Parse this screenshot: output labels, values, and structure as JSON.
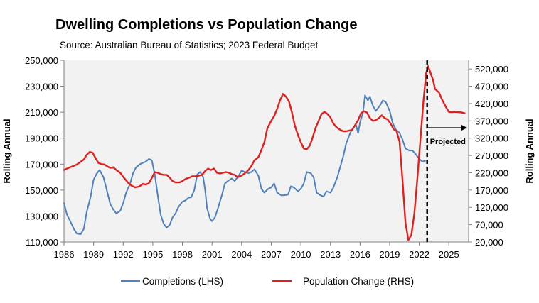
{
  "chart_data": {
    "type": "line",
    "title": "Dwelling Completions vs Population Change",
    "subtitle": "Source: Australian Bureau of Statistics; 2023 Federal Budget",
    "xlabel": "",
    "ylabel_left": "Rolling Annual",
    "ylabel_right": "Rolling Annual",
    "xlim": [
      1986,
      2027
    ],
    "ylim_left": [
      110000,
      250000
    ],
    "ylim_right": [
      20000,
      545000
    ],
    "x_ticks": [
      1986,
      1989,
      1992,
      1995,
      1998,
      2001,
      2004,
      2007,
      2010,
      2013,
      2016,
      2019,
      2022,
      2025
    ],
    "x_tick_labels": [
      "1986",
      "1989",
      "1992",
      "1995",
      "1998",
      "2001",
      "2004",
      "2007",
      "2010",
      "2013",
      "2016",
      "2019",
      "2022",
      "2025"
    ],
    "y_left_ticks": [
      110000,
      130000,
      150000,
      170000,
      190000,
      210000,
      230000,
      250000
    ],
    "y_left_tick_labels": [
      "110,000",
      "130,000",
      "150,000",
      "170,000",
      "190,000",
      "210,000",
      "230,000",
      "250,000"
    ],
    "y_right_ticks": [
      20000,
      70000,
      120000,
      170000,
      220000,
      270000,
      320000,
      370000,
      420000,
      470000,
      520000
    ],
    "y_right_tick_labels": [
      "20,000",
      "70,000",
      "120,000",
      "170,000",
      "220,000",
      "270,000",
      "320,000",
      "370,000",
      "420,000",
      "470,000",
      "520,000"
    ],
    "grid": false,
    "legend_position": "bottom",
    "annotation": {
      "text": "Projected",
      "x": 2022.8
    },
    "series": [
      {
        "name": "Completions (LHS)",
        "axis": "left",
        "color": "#4f81bd",
        "points": [
          [
            1986.0,
            140000
          ],
          [
            1986.3,
            131000
          ],
          [
            1986.7,
            125000
          ],
          [
            1987.0,
            120000
          ],
          [
            1987.3,
            116500
          ],
          [
            1987.7,
            116000
          ],
          [
            1988.0,
            120000
          ],
          [
            1988.3,
            133000
          ],
          [
            1988.7,
            145000
          ],
          [
            1989.0,
            158000
          ],
          [
            1989.3,
            162500
          ],
          [
            1989.6,
            165500
          ],
          [
            1990.0,
            160000
          ],
          [
            1990.3,
            151000
          ],
          [
            1990.7,
            139000
          ],
          [
            1991.0,
            135000
          ],
          [
            1991.3,
            132000
          ],
          [
            1991.7,
            134000
          ],
          [
            1992.0,
            140000
          ],
          [
            1992.3,
            148000
          ],
          [
            1992.7,
            155000
          ],
          [
            1993.0,
            163000
          ],
          [
            1993.3,
            167500
          ],
          [
            1993.7,
            170000
          ],
          [
            1994.0,
            171000
          ],
          [
            1994.3,
            172000
          ],
          [
            1994.6,
            174000
          ],
          [
            1994.9,
            173000
          ],
          [
            1995.2,
            162000
          ],
          [
            1995.5,
            146000
          ],
          [
            1995.8,
            131000
          ],
          [
            1996.1,
            124000
          ],
          [
            1996.4,
            121000
          ],
          [
            1996.7,
            123000
          ],
          [
            1997.0,
            129000
          ],
          [
            1997.3,
            132000
          ],
          [
            1997.6,
            137000
          ],
          [
            1998.0,
            141000
          ],
          [
            1998.3,
            142000
          ],
          [
            1998.6,
            144000
          ],
          [
            1998.9,
            144500
          ],
          [
            1999.2,
            150000
          ],
          [
            1999.5,
            162000
          ],
          [
            1999.8,
            164000
          ],
          [
            2000.1,
            160000
          ],
          [
            2000.3,
            150000
          ],
          [
            2000.5,
            136000
          ],
          [
            2000.8,
            128000
          ],
          [
            2001.0,
            126000
          ],
          [
            2001.3,
            129000
          ],
          [
            2001.6,
            136000
          ],
          [
            2002.0,
            146000
          ],
          [
            2002.3,
            155000
          ],
          [
            2002.6,
            157000
          ],
          [
            2003.0,
            159000
          ],
          [
            2003.3,
            157000
          ],
          [
            2003.7,
            161000
          ],
          [
            2004.0,
            165000
          ],
          [
            2004.3,
            164000
          ],
          [
            2004.7,
            163000
          ],
          [
            2005.0,
            164000
          ],
          [
            2005.3,
            166000
          ],
          [
            2005.7,
            161000
          ],
          [
            2006.0,
            151000
          ],
          [
            2006.3,
            148000
          ],
          [
            2006.7,
            151000
          ],
          [
            2007.0,
            152000
          ],
          [
            2007.3,
            155000
          ],
          [
            2007.6,
            148000
          ],
          [
            2008.0,
            146000
          ],
          [
            2008.3,
            146000
          ],
          [
            2008.7,
            146500
          ],
          [
            2009.0,
            153000
          ],
          [
            2009.3,
            152000
          ],
          [
            2009.7,
            149000
          ],
          [
            2010.0,
            151000
          ],
          [
            2010.3,
            155000
          ],
          [
            2010.6,
            164000
          ],
          [
            2011.0,
            163000
          ],
          [
            2011.3,
            160000
          ],
          [
            2011.6,
            148000
          ],
          [
            2012.0,
            146000
          ],
          [
            2012.3,
            145000
          ],
          [
            2012.6,
            149000
          ],
          [
            2013.0,
            148000
          ],
          [
            2013.3,
            152000
          ],
          [
            2013.7,
            160000
          ],
          [
            2014.0,
            168000
          ],
          [
            2014.3,
            176000
          ],
          [
            2014.6,
            186000
          ],
          [
            2015.0,
            194000
          ],
          [
            2015.3,
            198000
          ],
          [
            2015.6,
            200000
          ],
          [
            2015.8,
            194000
          ],
          [
            2016.0,
            202000
          ],
          [
            2016.3,
            210000
          ],
          [
            2016.5,
            223000
          ],
          [
            2016.8,
            219000
          ],
          [
            2017.0,
            222000
          ],
          [
            2017.3,
            215000
          ],
          [
            2017.6,
            211000
          ],
          [
            2018.0,
            215000
          ],
          [
            2018.3,
            219000
          ],
          [
            2018.6,
            218000
          ],
          [
            2019.0,
            211000
          ],
          [
            2019.3,
            202000
          ],
          [
            2019.6,
            197000
          ],
          [
            2020.0,
            194000
          ],
          [
            2020.3,
            189000
          ],
          [
            2020.6,
            182000
          ],
          [
            2021.0,
            180500
          ],
          [
            2021.3,
            180500
          ],
          [
            2021.6,
            178000
          ],
          [
            2022.0,
            174000
          ],
          [
            2022.3,
            172000
          ],
          [
            2022.6,
            172500
          ]
        ]
      },
      {
        "name": "Population Change (RHS)",
        "axis": "right",
        "color": "#e02020",
        "points": [
          [
            1986.0,
            228000
          ],
          [
            1986.3,
            232000
          ],
          [
            1986.7,
            237000
          ],
          [
            1987.0,
            240000
          ],
          [
            1987.3,
            244000
          ],
          [
            1987.7,
            252000
          ],
          [
            1988.0,
            258000
          ],
          [
            1988.3,
            272000
          ],
          [
            1988.6,
            280000
          ],
          [
            1988.9,
            278000
          ],
          [
            1989.2,
            262000
          ],
          [
            1989.5,
            248000
          ],
          [
            1989.8,
            245000
          ],
          [
            1990.1,
            244000
          ],
          [
            1990.4,
            238000
          ],
          [
            1990.7,
            234000
          ],
          [
            1991.0,
            236000
          ],
          [
            1991.3,
            228000
          ],
          [
            1991.7,
            220000
          ],
          [
            1992.0,
            208000
          ],
          [
            1992.3,
            198000
          ],
          [
            1992.6,
            188000
          ],
          [
            1992.9,
            182000
          ],
          [
            1993.2,
            178000
          ],
          [
            1993.6,
            180000
          ],
          [
            1994.0,
            188000
          ],
          [
            1994.3,
            186000
          ],
          [
            1994.6,
            190000
          ],
          [
            1994.9,
            205000
          ],
          [
            1995.2,
            222000
          ],
          [
            1995.5,
            220000
          ],
          [
            1995.8,
            216000
          ],
          [
            1996.1,
            214000
          ],
          [
            1996.4,
            214000
          ],
          [
            1996.7,
            206000
          ],
          [
            1997.0,
            196000
          ],
          [
            1997.3,
            192000
          ],
          [
            1997.7,
            192000
          ],
          [
            1998.0,
            196000
          ],
          [
            1998.3,
            202000
          ],
          [
            1998.7,
            206000
          ],
          [
            1999.0,
            210000
          ],
          [
            1999.3,
            210000
          ],
          [
            1999.7,
            212000
          ],
          [
            2000.0,
            214000
          ],
          [
            2000.3,
            225000
          ],
          [
            2000.6,
            232000
          ],
          [
            2000.9,
            228000
          ],
          [
            2001.2,
            232000
          ],
          [
            2001.5,
            220000
          ],
          [
            2001.8,
            218000
          ],
          [
            2002.1,
            220000
          ],
          [
            2002.4,
            222000
          ],
          [
            2002.7,
            220000
          ],
          [
            2003.0,
            216000
          ],
          [
            2003.3,
            214000
          ],
          [
            2003.6,
            207000
          ],
          [
            2004.0,
            212000
          ],
          [
            2004.3,
            218000
          ],
          [
            2004.7,
            228000
          ],
          [
            2005.0,
            240000
          ],
          [
            2005.3,
            256000
          ],
          [
            2005.7,
            265000
          ],
          [
            2006.0,
            286000
          ],
          [
            2006.3,
            308000
          ],
          [
            2006.6,
            348000
          ],
          [
            2007.0,
            370000
          ],
          [
            2007.3,
            384000
          ],
          [
            2007.6,
            405000
          ],
          [
            2007.9,
            430000
          ],
          [
            2008.2,
            448000
          ],
          [
            2008.5,
            440000
          ],
          [
            2008.8,
            426000
          ],
          [
            2009.1,
            394000
          ],
          [
            2009.4,
            356000
          ],
          [
            2009.7,
            330000
          ],
          [
            2010.0,
            308000
          ],
          [
            2010.3,
            290000
          ],
          [
            2010.6,
            288000
          ],
          [
            2010.9,
            298000
          ],
          [
            2011.2,
            322000
          ],
          [
            2011.5,
            350000
          ],
          [
            2011.8,
            370000
          ],
          [
            2012.1,
            390000
          ],
          [
            2012.4,
            396000
          ],
          [
            2012.7,
            390000
          ],
          [
            2013.0,
            380000
          ],
          [
            2013.3,
            362000
          ],
          [
            2013.6,
            352000
          ],
          [
            2014.0,
            344000
          ],
          [
            2014.3,
            340000
          ],
          [
            2014.6,
            340000
          ],
          [
            2014.9,
            342000
          ],
          [
            2015.2,
            344000
          ],
          [
            2015.5,
            358000
          ],
          [
            2015.8,
            372000
          ],
          [
            2016.1,
            392000
          ],
          [
            2016.4,
            398000
          ],
          [
            2016.7,
            394000
          ],
          [
            2017.0,
            378000
          ],
          [
            2017.3,
            370000
          ],
          [
            2017.6,
            372000
          ],
          [
            2017.9,
            378000
          ],
          [
            2018.2,
            386000
          ],
          [
            2018.5,
            378000
          ],
          [
            2018.8,
            374000
          ],
          [
            2019.1,
            362000
          ],
          [
            2019.4,
            346000
          ],
          [
            2019.7,
            340000
          ],
          [
            2020.0,
            310000
          ],
          [
            2020.3,
            200000
          ],
          [
            2020.6,
            75000
          ],
          [
            2020.9,
            26000
          ],
          [
            2021.2,
            40000
          ],
          [
            2021.5,
            102000
          ],
          [
            2021.8,
            200000
          ],
          [
            2022.1,
            310000
          ],
          [
            2022.4,
            420000
          ],
          [
            2022.7,
            508000
          ],
          [
            2022.9,
            528000
          ],
          [
            2023.1,
            512000
          ],
          [
            2023.4,
            488000
          ],
          [
            2023.6,
            462000
          ],
          [
            2024.0,
            452000
          ],
          [
            2024.3,
            432000
          ],
          [
            2024.7,
            410000
          ],
          [
            2025.0,
            396000
          ],
          [
            2025.3,
            395000
          ],
          [
            2025.6,
            396000
          ],
          [
            2026.0,
            395000
          ],
          [
            2026.3,
            394000
          ],
          [
            2026.6,
            392000
          ]
        ]
      }
    ]
  }
}
